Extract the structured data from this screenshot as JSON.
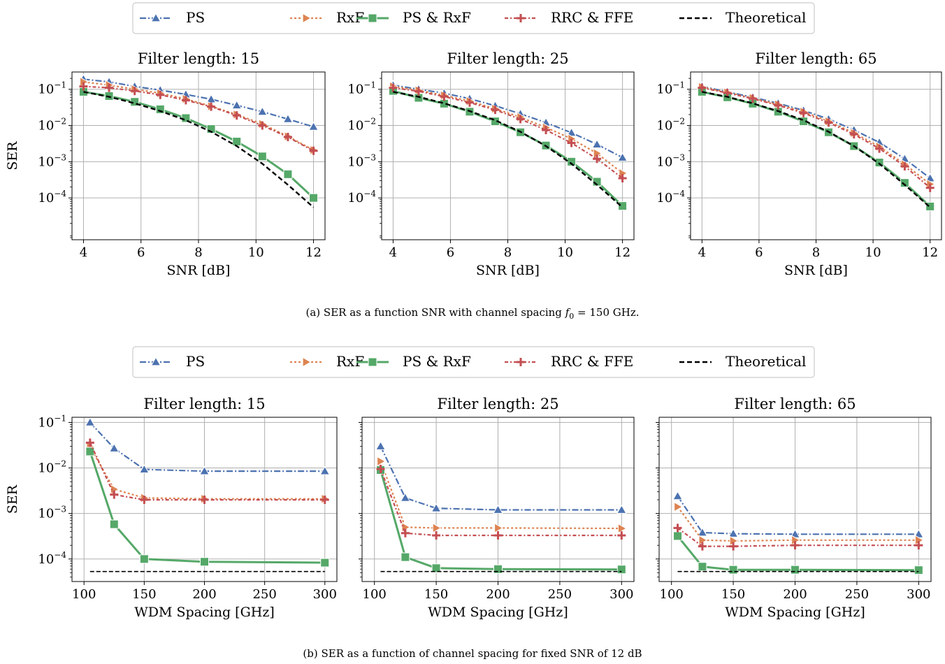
{
  "colors": {
    "PS": "#4c72b0",
    "RxF": "#dd8452",
    "PS & RxF": "#55a868",
    "RRC & FFE": "#c44e52",
    "Theoretical": "#000000",
    "grid": "#b0b0b0"
  },
  "figure_a": {
    "caption_prefix": "(a) SER as a function SNR with channel spacing ",
    "caption_math": "f",
    "caption_sub": "0",
    "caption_suffix": " = 150 GHz.",
    "legend": [
      "PS",
      "RxF",
      "PS & RxF",
      "RRC & FFE",
      "Theoretical"
    ]
  },
  "figure_b": {
    "caption": "(b) SER as a function of channel spacing for fixed SNR of 12 dB",
    "legend": [
      "PS",
      "RxF",
      "PS & RxF",
      "RRC & FFE",
      "Theoretical"
    ]
  },
  "chart_data": [
    {
      "type": "line",
      "panel": "a1",
      "log_y": true,
      "grid": true,
      "title": "Filter length: 15",
      "xlabel": "SNR [dB]",
      "ylabel": "SER",
      "xlim": [
        3.6,
        12.4
      ],
      "ylim": [
        7e-06,
        0.3
      ],
      "xticks": [
        4,
        6,
        8,
        10,
        12
      ],
      "yticks": [
        0.1,
        0.01,
        0.001,
        0.0001
      ],
      "ytick_labels": [
        [
          "10",
          "−1"
        ],
        [
          "10",
          "−2"
        ],
        [
          "10",
          "−3"
        ],
        [
          "10",
          "−4"
        ]
      ],
      "x": [
        4,
        4.89,
        5.78,
        6.67,
        7.56,
        8.44,
        9.33,
        10.22,
        11.11,
        12
      ],
      "series": [
        {
          "name": "PS",
          "values": [
            0.19,
            0.16,
            0.12,
            0.095,
            0.072,
            0.053,
            0.036,
            0.024,
            0.015,
            0.0092
          ]
        },
        {
          "name": "RxF",
          "values": [
            0.16,
            0.13,
            0.1,
            0.078,
            0.054,
            0.034,
            0.02,
            0.011,
            0.005,
            0.0021
          ]
        },
        {
          "name": "PS & RxF",
          "values": [
            0.085,
            0.065,
            0.045,
            0.028,
            0.016,
            0.008,
            0.0036,
            0.0014,
            0.00045,
            0.0001
          ]
        },
        {
          "name": "RRC & FFE",
          "values": [
            0.12,
            0.11,
            0.09,
            0.07,
            0.05,
            0.033,
            0.019,
            0.01,
            0.0048,
            0.002
          ]
        },
        {
          "name": "Theoretical",
          "values": [
            0.085,
            0.062,
            0.041,
            0.025,
            0.014,
            0.0067,
            0.0027,
            0.00088,
            0.00023,
            5.5e-05
          ]
        }
      ]
    },
    {
      "type": "line",
      "panel": "a2",
      "log_y": true,
      "grid": true,
      "title": "Filter length: 25",
      "xlabel": "SNR [dB]",
      "ylabel": "",
      "xlim": [
        3.6,
        12.4
      ],
      "ylim": [
        7e-06,
        0.3
      ],
      "xticks": [
        4,
        6,
        8,
        10,
        12
      ],
      "yticks": [
        0.1,
        0.01,
        0.001,
        0.0001
      ],
      "ytick_labels": [
        [
          "10",
          "−1"
        ],
        [
          "10",
          "−2"
        ],
        [
          "10",
          "−3"
        ],
        [
          "10",
          "−4"
        ]
      ],
      "x": [
        4,
        4.89,
        5.78,
        6.67,
        7.56,
        8.44,
        9.33,
        10.22,
        11.11,
        12
      ],
      "series": [
        {
          "name": "PS",
          "values": [
            0.13,
            0.1,
            0.078,
            0.055,
            0.035,
            0.021,
            0.012,
            0.0063,
            0.003,
            0.0013
          ]
        },
        {
          "name": "RxF",
          "values": [
            0.12,
            0.093,
            0.068,
            0.047,
            0.029,
            0.017,
            0.0088,
            0.0043,
            0.0017,
            0.00048
          ]
        },
        {
          "name": "PS & RxF",
          "values": [
            0.09,
            0.058,
            0.04,
            0.024,
            0.013,
            0.0065,
            0.0028,
            0.001,
            0.00028,
            6e-05
          ]
        },
        {
          "name": "RRC & FFE",
          "values": [
            0.11,
            0.088,
            0.063,
            0.043,
            0.027,
            0.015,
            0.0075,
            0.0033,
            0.0012,
            0.00035
          ]
        },
        {
          "name": "Theoretical",
          "values": [
            0.085,
            0.062,
            0.041,
            0.025,
            0.014,
            0.0067,
            0.0027,
            0.00088,
            0.00023,
            5.5e-05
          ]
        }
      ]
    },
    {
      "type": "line",
      "panel": "a3",
      "log_y": true,
      "grid": true,
      "title": "Filter length: 65",
      "xlabel": "SNR [dB]",
      "ylabel": "",
      "xlim": [
        3.6,
        12.4
      ],
      "ylim": [
        7e-06,
        0.3
      ],
      "xticks": [
        4,
        6,
        8,
        10,
        12
      ],
      "yticks": [
        0.1,
        0.01,
        0.001,
        0.0001
      ],
      "ytick_labels": [
        [
          "10",
          "−1"
        ],
        [
          "10",
          "−2"
        ],
        [
          "10",
          "−3"
        ],
        [
          "10",
          "−4"
        ]
      ],
      "x": [
        4,
        4.89,
        5.78,
        6.67,
        7.56,
        8.44,
        9.33,
        10.22,
        11.11,
        12
      ],
      "series": [
        {
          "name": "PS",
          "values": [
            0.12,
            0.085,
            0.06,
            0.041,
            0.026,
            0.015,
            0.0075,
            0.0034,
            0.0012,
            0.00035
          ]
        },
        {
          "name": "RxF",
          "values": [
            0.115,
            0.082,
            0.057,
            0.038,
            0.024,
            0.013,
            0.0062,
            0.0026,
            0.00085,
            0.00024
          ]
        },
        {
          "name": "PS & RxF",
          "values": [
            0.085,
            0.06,
            0.04,
            0.024,
            0.013,
            0.0065,
            0.0027,
            0.00095,
            0.00026,
            5.8e-05
          ]
        },
        {
          "name": "RRC & FFE",
          "values": [
            0.11,
            0.079,
            0.055,
            0.036,
            0.022,
            0.012,
            0.0057,
            0.0023,
            0.00075,
            0.00019
          ]
        },
        {
          "name": "Theoretical",
          "values": [
            0.085,
            0.062,
            0.041,
            0.025,
            0.014,
            0.0067,
            0.0027,
            0.00088,
            0.00023,
            5.5e-05
          ]
        }
      ]
    },
    {
      "type": "line",
      "panel": "b1",
      "log_y": true,
      "grid": true,
      "title": "Filter length: 15",
      "xlabel": "WDM Spacing [GHz]",
      "ylabel": "SER",
      "xlim": [
        90,
        310
      ],
      "ylim": [
        3.2e-05,
        0.13
      ],
      "xticks": [
        100,
        150,
        200,
        250,
        300
      ],
      "yticks": [
        0.1,
        0.01,
        0.001,
        0.0001
      ],
      "ytick_labels": [
        [
          "10",
          "−1"
        ],
        [
          "10",
          "−2"
        ],
        [
          "10",
          "−3"
        ],
        [
          "10",
          "−4"
        ]
      ],
      "x": [
        105,
        125,
        150,
        200,
        300
      ],
      "series": [
        {
          "name": "PS",
          "values": [
            0.1,
            0.027,
            0.0093,
            0.0085,
            0.0085
          ]
        },
        {
          "name": "RxF",
          "values": [
            0.029,
            0.0034,
            0.0022,
            0.0021,
            0.0021
          ]
        },
        {
          "name": "PS & RxF",
          "values": [
            0.023,
            0.00058,
            0.0001,
            8.7e-05,
            8.3e-05
          ]
        },
        {
          "name": "RRC & FFE",
          "values": [
            0.036,
            0.0026,
            0.002,
            0.002,
            0.002
          ]
        },
        {
          "name": "Theoretical",
          "values": [
            5.3e-05,
            5.3e-05,
            5.3e-05,
            5.3e-05,
            5.3e-05
          ]
        }
      ]
    },
    {
      "type": "line",
      "panel": "b2",
      "log_y": true,
      "grid": true,
      "title": "Filter length: 25",
      "xlabel": "WDM Spacing [GHz]",
      "ylabel": "",
      "xlim": [
        90,
        310
      ],
      "ylim": [
        3.2e-05,
        0.13
      ],
      "xticks": [
        100,
        150,
        200,
        250,
        300
      ],
      "yticks": [
        0.1,
        0.01,
        0.001,
        0.0001
      ],
      "x": [
        105,
        125,
        150,
        200,
        300
      ],
      "series": [
        {
          "name": "PS",
          "values": [
            0.03,
            0.0022,
            0.0013,
            0.0012,
            0.0012
          ]
        },
        {
          "name": "RxF",
          "values": [
            0.014,
            0.0005,
            0.00048,
            0.00048,
            0.00047
          ]
        },
        {
          "name": "PS & RxF",
          "values": [
            0.009,
            0.00011,
            6.3e-05,
            6e-05,
            5.9e-05
          ]
        },
        {
          "name": "RRC & FFE",
          "values": [
            0.0095,
            0.00037,
            0.00033,
            0.00033,
            0.00033
          ]
        },
        {
          "name": "Theoretical",
          "values": [
            5.3e-05,
            5.3e-05,
            5.3e-05,
            5.3e-05,
            5.3e-05
          ]
        }
      ]
    },
    {
      "type": "line",
      "panel": "b3",
      "log_y": true,
      "grid": true,
      "title": "Filter length: 65",
      "xlabel": "WDM Spacing [GHz]",
      "ylabel": "",
      "xlim": [
        90,
        310
      ],
      "ylim": [
        3.2e-05,
        0.13
      ],
      "xticks": [
        100,
        150,
        200,
        250,
        300
      ],
      "yticks": [
        0.1,
        0.01,
        0.001,
        0.0001
      ],
      "x": [
        105,
        125,
        150,
        200,
        300
      ],
      "series": [
        {
          "name": "PS",
          "values": [
            0.0024,
            0.00038,
            0.00036,
            0.00035,
            0.00035
          ]
        },
        {
          "name": "RxF",
          "values": [
            0.0014,
            0.00026,
            0.00025,
            0.00026,
            0.00026
          ]
        },
        {
          "name": "PS & RxF",
          "values": [
            0.00032,
            6.8e-05,
            5.8e-05,
            5.8e-05,
            5.7e-05
          ]
        },
        {
          "name": "RRC & FFE",
          "values": [
            0.00048,
            0.00019,
            0.00019,
            0.0002,
            0.0002
          ]
        },
        {
          "name": "Theoretical",
          "values": [
            5.3e-05,
            5.3e-05,
            5.3e-05,
            5.3e-05,
            5.3e-05
          ]
        }
      ]
    }
  ]
}
